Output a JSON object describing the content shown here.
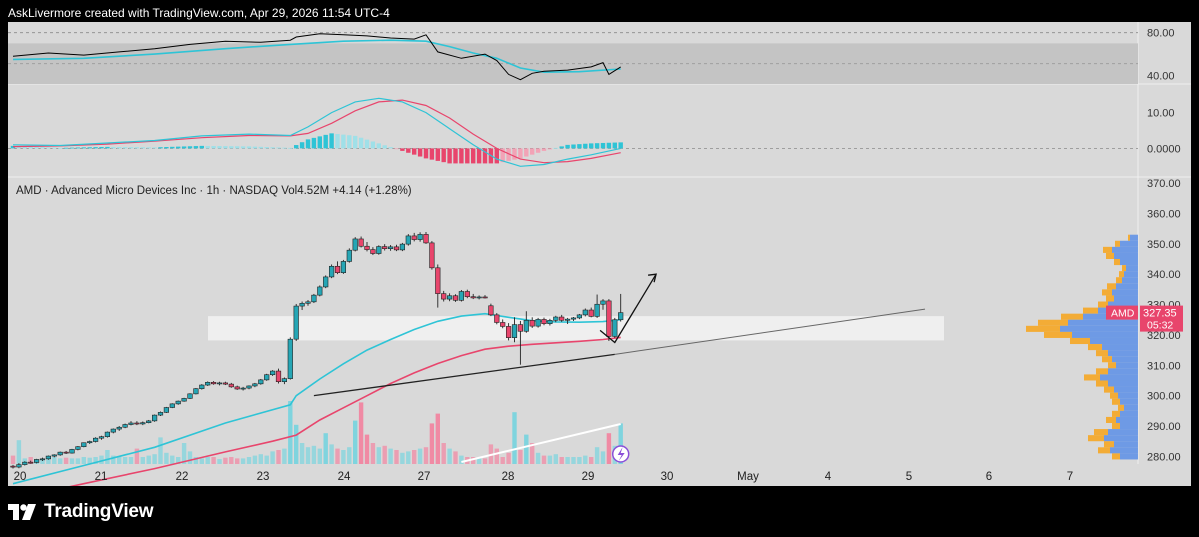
{
  "header": {
    "credit": "AskLivermore created with TradingView.com, Apr 29, 2026 11:54 UTC-4"
  },
  "footer": {
    "brand": "TradingView"
  },
  "colors": {
    "background": "#d9d9d9",
    "up_candle": "#26a6b5",
    "down_candle": "#e8456c",
    "ema_fast": "#2ec4d6",
    "ema_slow": "#e8456c",
    "trendline": "#222222",
    "zone": "#f2f2f2",
    "vp_up": "#f5a623",
    "vp_down": "#5b8ee6",
    "rsi_line": "#000000",
    "rsi_ma": "#2ec4d6",
    "macd_line": "#2ec4d6",
    "signal_line": "#e8456c"
  },
  "chart_data": {
    "type": "candlestick",
    "legend": {
      "symbol": "AMD",
      "name": "Advanced Micro Devices Inc",
      "interval": "1h",
      "exchange": "NASDAQ",
      "volume": "Vol4.52M",
      "change": "+4.14 (+1.28%)"
    },
    "price_axis": {
      "ticks": [
        "370.00",
        "360.00",
        "350.00",
        "340.00",
        "330.00",
        "320.00",
        "310.00",
        "300.00",
        "290.00",
        "280.00"
      ],
      "ylim": [
        277.5,
        372
      ]
    },
    "time_axis": {
      "labels": [
        "20",
        "21",
        "22",
        "23",
        "24",
        "27",
        "28",
        "29",
        "30",
        "May",
        "4",
        "5",
        "6",
        "7"
      ]
    },
    "last_price": {
      "symbol": "AMD",
      "price": "327.35",
      "countdown": "05:32",
      "value": 327.35
    },
    "candles": [
      [
        276.8,
        277.2,
        276.0,
        276.5
      ],
      [
        276.5,
        277.8,
        276.1,
        277.3
      ],
      [
        277.3,
        278.4,
        277.0,
        278.1
      ],
      [
        278.1,
        278.6,
        277.6,
        278.0
      ],
      [
        278.0,
        279.2,
        277.7,
        279.0
      ],
      [
        279.0,
        279.6,
        278.5,
        279.2
      ],
      [
        279.2,
        280.3,
        278.9,
        280.1
      ],
      [
        280.1,
        280.7,
        279.7,
        280.5
      ],
      [
        280.5,
        281.6,
        280.2,
        281.4
      ],
      [
        281.4,
        281.8,
        280.8,
        281.1
      ],
      [
        281.1,
        282.5,
        280.9,
        282.3
      ],
      [
        282.3,
        283.4,
        282.0,
        283.2
      ],
      [
        283.2,
        284.6,
        283.0,
        284.5
      ],
      [
        284.5,
        285.2,
        284.1,
        284.9
      ],
      [
        284.9,
        286.3,
        284.6,
        286.0
      ],
      [
        286.0,
        286.8,
        285.5,
        286.5
      ],
      [
        286.5,
        288.2,
        286.2,
        288.0
      ],
      [
        288.0,
        289.2,
        287.6,
        289.0
      ],
      [
        289.0,
        290.0,
        288.4,
        289.6
      ],
      [
        289.6,
        290.8,
        289.3,
        290.5
      ],
      [
        290.5,
        291.6,
        290.2,
        291.0
      ],
      [
        291.0,
        291.6,
        290.3,
        290.7
      ],
      [
        290.7,
        291.5,
        290.3,
        291.1
      ],
      [
        291.1,
        292.0,
        290.9,
        291.7
      ],
      [
        291.7,
        293.8,
        291.4,
        293.6
      ],
      [
        293.6,
        294.8,
        293.3,
        294.5
      ],
      [
        294.5,
        296.3,
        294.3,
        296.1
      ],
      [
        296.1,
        297.5,
        295.9,
        297.3
      ],
      [
        297.3,
        298.4,
        297.0,
        298.2
      ],
      [
        298.2,
        299.3,
        298.0,
        299.1
      ],
      [
        299.1,
        300.8,
        298.9,
        300.6
      ],
      [
        300.6,
        302.5,
        300.4,
        302.3
      ],
      [
        302.3,
        303.8,
        302.0,
        303.5
      ],
      [
        303.5,
        304.7,
        303.2,
        304.4
      ],
      [
        304.4,
        304.8,
        303.6,
        303.9
      ],
      [
        303.9,
        304.6,
        303.4,
        304.2
      ],
      [
        304.2,
        304.6,
        303.5,
        303.8
      ],
      [
        303.8,
        304.2,
        302.6,
        302.9
      ],
      [
        302.9,
        303.3,
        301.9,
        302.2
      ],
      [
        302.2,
        302.9,
        301.7,
        302.5
      ],
      [
        302.5,
        303.4,
        302.1,
        303.2
      ],
      [
        303.2,
        304.2,
        302.8,
        303.9
      ],
      [
        303.9,
        305.5,
        303.6,
        305.2
      ],
      [
        305.2,
        307.2,
        304.9,
        306.9
      ],
      [
        306.9,
        308.4,
        306.5,
        308.1
      ],
      [
        308.1,
        308.9,
        304.0,
        304.6
      ],
      [
        304.6,
        306.0,
        303.8,
        305.6
      ],
      [
        305.6,
        319.2,
        305.3,
        318.6
      ],
      [
        318.6,
        330.2,
        318.0,
        329.5
      ],
      [
        329.5,
        331.0,
        328.2,
        330.4
      ],
      [
        330.4,
        331.5,
        329.6,
        330.9
      ],
      [
        330.9,
        333.5,
        330.5,
        333.1
      ],
      [
        333.1,
        336.3,
        332.7,
        335.8
      ],
      [
        335.8,
        339.6,
        335.4,
        339.1
      ],
      [
        339.1,
        343.2,
        338.7,
        342.6
      ],
      [
        342.6,
        344.2,
        340.0,
        340.5
      ],
      [
        340.5,
        344.7,
        340.1,
        344.2
      ],
      [
        344.2,
        348.5,
        343.8,
        347.9
      ],
      [
        347.9,
        352.2,
        347.5,
        351.6
      ],
      [
        351.6,
        352.4,
        348.8,
        349.2
      ],
      [
        349.2,
        350.6,
        347.5,
        348.1
      ],
      [
        348.1,
        348.9,
        346.3,
        346.8
      ],
      [
        346.8,
        349.5,
        346.4,
        349.1
      ],
      [
        349.1,
        349.9,
        347.8,
        348.4
      ],
      [
        348.4,
        349.6,
        347.7,
        349.0
      ],
      [
        349.0,
        349.7,
        347.6,
        348.0
      ],
      [
        348.0,
        350.3,
        347.6,
        349.9
      ],
      [
        349.9,
        353.2,
        349.4,
        352.6
      ],
      [
        352.6,
        353.6,
        350.8,
        351.4
      ],
      [
        351.4,
        353.8,
        350.7,
        353.1
      ],
      [
        353.1,
        353.9,
        350.0,
        350.3
      ],
      [
        350.3,
        350.9,
        341.5,
        342.1
      ],
      [
        342.1,
        343.2,
        329.0,
        333.6
      ],
      [
        333.6,
        334.5,
        331.0,
        331.8
      ],
      [
        331.8,
        333.7,
        331.1,
        332.9
      ],
      [
        332.9,
        333.4,
        330.9,
        331.4
      ],
      [
        331.4,
        334.8,
        331.0,
        334.3
      ],
      [
        334.3,
        334.9,
        332.1,
        332.6
      ],
      [
        332.6,
        333.5,
        331.8,
        332.2
      ],
      [
        332.2,
        333.0,
        331.7,
        332.5
      ],
      [
        332.5,
        333.1,
        332.0,
        332.4
      ],
      [
        329.6,
        330.3,
        326.2,
        326.6
      ],
      [
        326.6,
        327.2,
        323.5,
        324.1
      ],
      [
        324.1,
        325.1,
        322.2,
        322.8
      ],
      [
        322.8,
        323.9,
        318.2,
        319.1
      ],
      [
        319.1,
        325.8,
        317.6,
        323.4
      ],
      [
        323.4,
        324.6,
        310.2,
        321.2
      ],
      [
        321.2,
        327.8,
        320.7,
        324.8
      ],
      [
        324.8,
        325.8,
        322.3,
        322.9
      ],
      [
        322.9,
        325.6,
        322.4,
        325.1
      ],
      [
        325.1,
        325.7,
        323.2,
        323.7
      ],
      [
        323.7,
        325.3,
        323.1,
        324.8
      ],
      [
        324.8,
        326.3,
        324.2,
        325.9
      ],
      [
        325.9,
        326.6,
        324.3,
        324.8
      ],
      [
        324.8,
        325.6,
        323.6,
        325.2
      ],
      [
        325.2,
        325.9,
        324.6,
        325.6
      ],
      [
        325.6,
        326.9,
        325.2,
        326.6
      ],
      [
        326.6,
        328.7,
        326.1,
        328.2
      ],
      [
        328.2,
        329.0,
        325.8,
        326.1
      ],
      [
        326.1,
        333.3,
        325.6,
        330.1
      ],
      [
        330.1,
        331.8,
        328.3,
        331.2
      ],
      [
        331.2,
        331.8,
        318.0,
        319.5
      ],
      [
        319.5,
        325.6,
        319.0,
        325.0
      ],
      [
        325.0,
        333.5,
        324.4,
        327.35
      ]
    ],
    "ema_fast": [
      [
        0,
        271
      ],
      [
        12,
        277
      ],
      [
        24,
        283
      ],
      [
        36,
        291
      ],
      [
        47,
        297
      ],
      [
        48,
        300
      ],
      [
        52,
        305.5
      ],
      [
        56,
        310.5
      ],
      [
        60,
        315
      ],
      [
        64,
        318.5
      ],
      [
        68,
        321.8
      ],
      [
        72,
        324.5
      ],
      [
        76,
        326.2
      ],
      [
        80,
        327
      ],
      [
        84,
        325.8
      ],
      [
        88,
        324.7
      ],
      [
        92,
        324.3
      ],
      [
        96,
        324.2
      ],
      [
        100,
        324.4
      ],
      [
        103,
        325
      ]
    ],
    "ema_slow": [
      [
        0,
        266
      ],
      [
        12,
        271
      ],
      [
        24,
        276
      ],
      [
        36,
        281.5
      ],
      [
        44,
        285
      ],
      [
        48,
        287
      ],
      [
        52,
        292
      ],
      [
        56,
        296
      ],
      [
        60,
        300
      ],
      [
        64,
        304
      ],
      [
        68,
        307.5
      ],
      [
        72,
        310.6
      ],
      [
        76,
        313.2
      ],
      [
        80,
        315.3
      ],
      [
        84,
        316.3
      ],
      [
        88,
        316.9
      ],
      [
        92,
        317.4
      ],
      [
        96,
        317.9
      ],
      [
        100,
        318.5
      ],
      [
        103,
        319.2
      ]
    ],
    "volumes": [
      0.12,
      0.34,
      0.08,
      0.1,
      0.06,
      0.08,
      0.12,
      0.1,
      0.08,
      0.09,
      0.08,
      0.08,
      0.1,
      0.09,
      0.1,
      0.12,
      0.2,
      0.12,
      0.11,
      0.1,
      0.1,
      0.22,
      0.1,
      0.12,
      0.14,
      0.38,
      0.16,
      0.12,
      0.1,
      0.3,
      0.18,
      0.1,
      0.08,
      0.1,
      0.1,
      0.07,
      0.09,
      0.1,
      0.08,
      0.08,
      0.1,
      0.12,
      0.14,
      0.12,
      0.18,
      0.2,
      0.22,
      0.9,
      0.56,
      0.3,
      0.24,
      0.26,
      0.22,
      0.44,
      0.28,
      0.22,
      0.2,
      0.24,
      0.62,
      0.88,
      0.42,
      0.3,
      0.24,
      0.26,
      0.22,
      0.2,
      0.16,
      0.18,
      0.2,
      0.22,
      0.24,
      0.58,
      0.72,
      0.3,
      0.22,
      0.18,
      0.12,
      0.1,
      0.1,
      0.08,
      0.08,
      0.28,
      0.22,
      0.1,
      0.16,
      0.74,
      0.2,
      0.42,
      0.3,
      0.16,
      0.12,
      0.12,
      0.14,
      0.1,
      0.1,
      0.1,
      0.1,
      0.12,
      0.1,
      0.24,
      0.18,
      0.44,
      0.26,
      0.58
    ],
    "horizontal_zone": {
      "from_price": 318.2,
      "to_price": 326.2
    },
    "projection": [
      [
        99.5,
        321.5
      ],
      [
        102,
        317.5
      ],
      [
        109,
        340
      ]
    ],
    "volume_profile": {
      "levels": [
        [
          352,
          2,
          8
        ],
        [
          350,
          5,
          18
        ],
        [
          348,
          9,
          26
        ],
        [
          346,
          8,
          24
        ],
        [
          344,
          6,
          18
        ],
        [
          342,
          4,
          12
        ],
        [
          340,
          5,
          14
        ],
        [
          338,
          6,
          16
        ],
        [
          336,
          9,
          22
        ],
        [
          334,
          10,
          26
        ],
        [
          332,
          8,
          24
        ],
        [
          330,
          10,
          30
        ],
        [
          328,
          15,
          40
        ],
        [
          326,
          22,
          55
        ],
        [
          324,
          30,
          70
        ],
        [
          322,
          34,
          78
        ],
        [
          320,
          28,
          66
        ],
        [
          318,
          20,
          48
        ],
        [
          316,
          14,
          36
        ],
        [
          314,
          12,
          30
        ],
        [
          312,
          10,
          26
        ],
        [
          310,
          8,
          22
        ],
        [
          308,
          12,
          30
        ],
        [
          306,
          16,
          38
        ],
        [
          304,
          12,
          30
        ],
        [
          302,
          10,
          24
        ],
        [
          300,
          8,
          20
        ],
        [
          298,
          8,
          18
        ],
        [
          296,
          6,
          14
        ],
        [
          294,
          8,
          18
        ],
        [
          292,
          10,
          22
        ],
        [
          290,
          8,
          18
        ],
        [
          288,
          14,
          30
        ],
        [
          286,
          16,
          34
        ],
        [
          284,
          10,
          24
        ],
        [
          282,
          12,
          28
        ],
        [
          280,
          8,
          18
        ]
      ]
    },
    "rsi": {
      "ticks": [
        "80.00",
        "40.00"
      ],
      "ylim": [
        32,
        90
      ],
      "band": [
        32,
        70
      ],
      "values": [
        [
          0,
          58
        ],
        [
          6,
          61
        ],
        [
          12,
          59
        ],
        [
          18,
          62
        ],
        [
          24,
          65
        ],
        [
          30,
          69
        ],
        [
          36,
          72
        ],
        [
          42,
          71
        ],
        [
          47,
          73
        ],
        [
          48,
          76
        ],
        [
          52,
          79
        ],
        [
          56,
          78
        ],
        [
          60,
          77
        ],
        [
          64,
          75
        ],
        [
          68,
          74
        ],
        [
          70,
          78
        ],
        [
          72,
          62
        ],
        [
          76,
          56
        ],
        [
          80,
          60
        ],
        [
          82,
          54
        ],
        [
          84,
          41
        ],
        [
          86,
          36
        ],
        [
          88,
          42
        ],
        [
          90,
          44
        ],
        [
          94,
          45
        ],
        [
          98,
          48
        ],
        [
          100,
          52
        ],
        [
          101,
          41
        ],
        [
          103,
          48
        ]
      ],
      "ma": [
        [
          0,
          55
        ],
        [
          12,
          56
        ],
        [
          24,
          60
        ],
        [
          36,
          65
        ],
        [
          47,
          69
        ],
        [
          56,
          72
        ],
        [
          64,
          73
        ],
        [
          70,
          72
        ],
        [
          74,
          67
        ],
        [
          78,
          61
        ],
        [
          82,
          56
        ],
        [
          86,
          47
        ],
        [
          90,
          43
        ],
        [
          96,
          43.5
        ],
        [
          103,
          46
        ]
      ]
    },
    "macd": {
      "ticks": [
        "10.00",
        "0.0000"
      ],
      "ylim": [
        -8,
        18
      ],
      "macd_line": [
        [
          0,
          1
        ],
        [
          8,
          0.8
        ],
        [
          16,
          1.5
        ],
        [
          24,
          2.2
        ],
        [
          32,
          3.5
        ],
        [
          40,
          4
        ],
        [
          47,
          3.6
        ],
        [
          50,
          6
        ],
        [
          54,
          10
        ],
        [
          58,
          13
        ],
        [
          62,
          14
        ],
        [
          66,
          13
        ],
        [
          70,
          10
        ],
        [
          74,
          5.5
        ],
        [
          78,
          1
        ],
        [
          82,
          -3
        ],
        [
          86,
          -5
        ],
        [
          90,
          -4.5
        ],
        [
          94,
          -3
        ],
        [
          98,
          -1.8
        ],
        [
          103,
          0
        ]
      ],
      "signal_line": [
        [
          0,
          0.5
        ],
        [
          8,
          0.7
        ],
        [
          16,
          1.2
        ],
        [
          24,
          2
        ],
        [
          32,
          3
        ],
        [
          40,
          3.6
        ],
        [
          47,
          3.5
        ],
        [
          50,
          4.2
        ],
        [
          54,
          7
        ],
        [
          58,
          10.5
        ],
        [
          62,
          13
        ],
        [
          66,
          13.5
        ],
        [
          70,
          12
        ],
        [
          74,
          8.5
        ],
        [
          78,
          4
        ],
        [
          82,
          0
        ],
        [
          86,
          -3
        ],
        [
          90,
          -4
        ],
        [
          94,
          -3.7
        ],
        [
          98,
          -2.8
        ],
        [
          103,
          -1.2
        ]
      ]
    }
  }
}
